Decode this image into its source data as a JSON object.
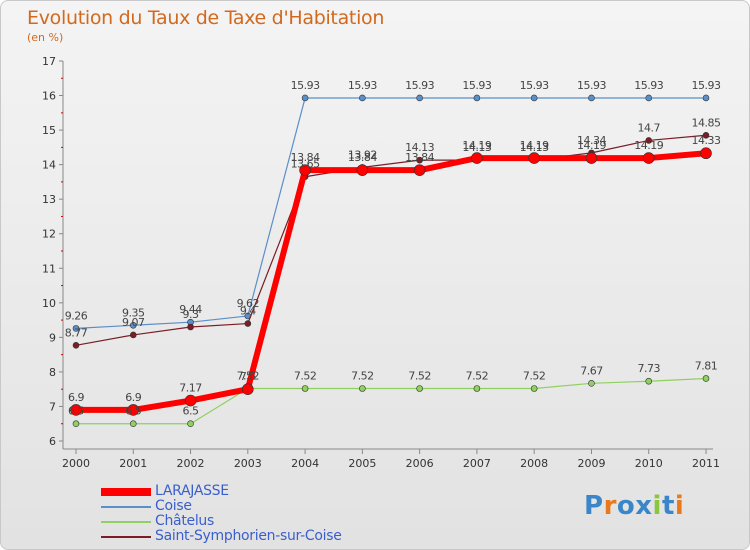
{
  "chart_data": {
    "type": "line",
    "title": "Evolution du Taux de Taxe d'Habitation",
    "ylabel": "(en %)",
    "xlabel": "",
    "ylim": [
      6,
      17
    ],
    "yticks": [
      "6",
      "7",
      "8",
      "9",
      "10",
      "11",
      "12",
      "13",
      "14",
      "15",
      "16",
      "17"
    ],
    "x": [
      "2000",
      "2001",
      "2002",
      "2003",
      "2004",
      "2005",
      "2006",
      "2007",
      "2008",
      "2009",
      "2010",
      "2011"
    ],
    "series": [
      {
        "name": "LARAJASSE",
        "color": "#ff0000",
        "values": [
          6.9,
          6.9,
          7.17,
          7.5,
          13.84,
          13.84,
          13.84,
          14.19,
          14.19,
          14.19,
          14.19,
          14.33
        ],
        "labels": [
          "6.9",
          "6.9",
          "7.17",
          "7.5",
          "13.84",
          "13.84",
          "13.84",
          "14.19",
          "14.19",
          "14.19",
          "14.19",
          "14.33"
        ]
      },
      {
        "name": "Coise",
        "color": "#5a8fc8",
        "values": [
          9.26,
          9.35,
          9.44,
          9.62,
          15.93,
          15.93,
          15.93,
          15.93,
          15.93,
          15.93,
          15.93,
          15.93
        ],
        "labels": [
          "9.26",
          "9.35",
          "9.44",
          "9.62",
          "15.93",
          "15.93",
          "15.93",
          "15.93",
          "15.93",
          "15.93",
          "15.93",
          "15.93"
        ]
      },
      {
        "name": "Châtelus",
        "color": "#8fd060",
        "values": [
          6.5,
          6.5,
          6.5,
          7.52,
          7.52,
          7.52,
          7.52,
          7.52,
          7.52,
          7.67,
          7.73,
          7.81
        ],
        "labels": [
          "6.5",
          "6.5",
          "6.5",
          "7.52",
          "7.52",
          "7.52",
          "7.52",
          "7.52",
          "7.52",
          "7.67",
          "7.73",
          "7.81"
        ]
      },
      {
        "name": "Saint-Symphorien-sur-Coise",
        "color": "#7b1d25",
        "values": [
          8.77,
          9.07,
          9.3,
          9.4,
          13.65,
          13.92,
          14.13,
          14.13,
          14.13,
          14.34,
          14.7,
          14.85
        ],
        "labels": [
          "8.77",
          "9.07",
          "9.3",
          "9.4",
          "13.65",
          "13.92",
          "14.13",
          "14.13",
          "14.13",
          "14.34",
          "14.7",
          "14.85"
        ]
      }
    ],
    "legend_position": "bottom-left",
    "grid": false
  },
  "brand": {
    "letters": [
      "P",
      "r",
      "o",
      "x",
      "i",
      "t",
      "i"
    ],
    "colors": [
      "#3b86c8",
      "#e87a1d",
      "#3b86c8",
      "#3b86c8",
      "#8cc63e",
      "#3b86c8",
      "#e87a1d"
    ]
  }
}
